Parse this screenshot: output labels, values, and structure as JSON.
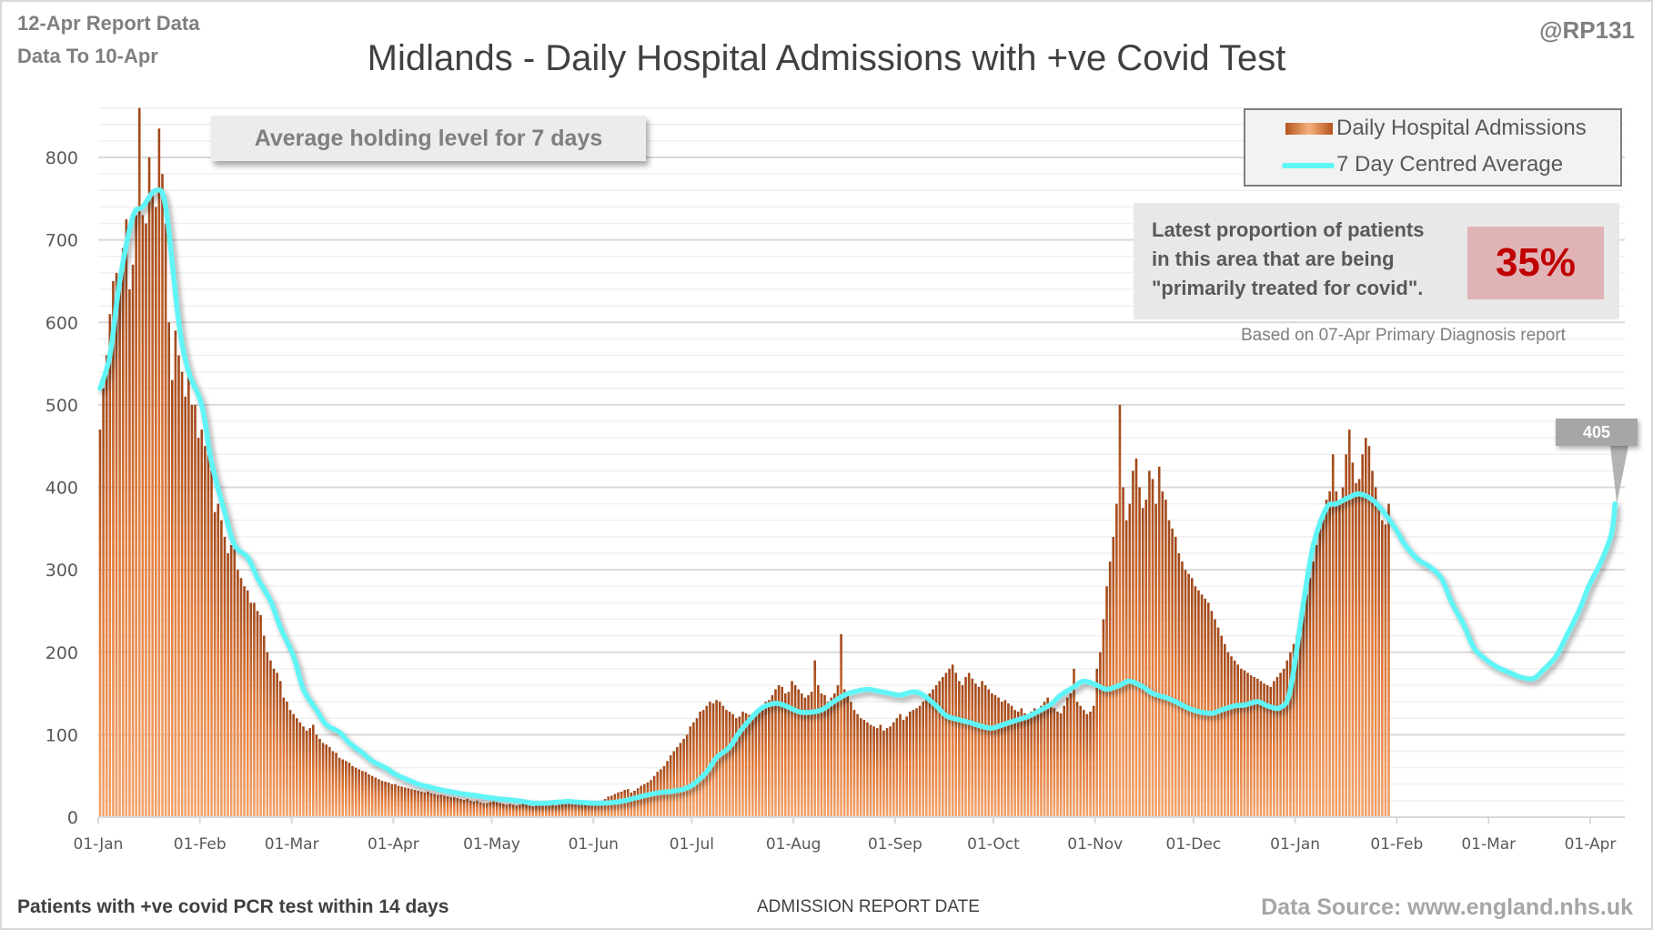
{
  "header": {
    "report_line": "12-Apr Report Data",
    "data_to_line": "Data To 10-Apr",
    "handle": "@RP131",
    "title": "Midlands - Daily Hospital Admissions with +ve Covid Test"
  },
  "annotations": {
    "holding_note": "Average holding level for 7 days",
    "proportion_text": "Latest proportion of patients in this area that are being \"primarily treated for covid\".",
    "proportion_value": "35%",
    "based_on": "Based on 07-Apr Primary Diagnosis report",
    "last_average_label": "405"
  },
  "footer": {
    "left": "Patients with +ve covid PCR test within 14 days",
    "axis_title": "ADMISSION REPORT DATE",
    "source": "Data Source: www.england.nhs.uk"
  },
  "colors": {
    "bar_dark": "#a0471a",
    "bar_light": "#f4a46c",
    "average_line": "#5ff5f7",
    "grid": "#d9d9d9",
    "highlight_pct": "#c00000"
  },
  "chart_data": {
    "type": "bar",
    "title": "Midlands - Daily Hospital Admissions with +ve Covid Test",
    "xlabel": "ADMISSION REPORT DATE",
    "ylabel": "",
    "ylim": [
      0,
      860
    ],
    "yticks": [
      0,
      100,
      200,
      300,
      400,
      500,
      600,
      700,
      800
    ],
    "start_date": "2021-01-01",
    "end_date": "2022-04-10",
    "xtick_labels": [
      "01-Jan",
      "01-Feb",
      "01-Mar",
      "01-Apr",
      "01-May",
      "01-Jun",
      "01-Jul",
      "01-Aug",
      "01-Sep",
      "01-Oct",
      "01-Nov",
      "01-Dec",
      "01-Jan",
      "01-Feb",
      "01-Mar",
      "01-Apr"
    ],
    "xtick_day_index": [
      0,
      31,
      59,
      90,
      120,
      151,
      181,
      212,
      243,
      273,
      304,
      334,
      365,
      396,
      424,
      455
    ],
    "legend": [
      "Daily Hospital Admissions",
      "7 Day Centred Average"
    ],
    "legend_position": "top-right",
    "grid": true,
    "series": [
      {
        "name": "7 Day Centred Average",
        "type": "line",
        "day_index": [
          0,
          3,
          6,
          10,
          13,
          17,
          20,
          24,
          27,
          31,
          34,
          38,
          41,
          45,
          48,
          52,
          55,
          59,
          62,
          66,
          69,
          73,
          76,
          80,
          83,
          87,
          90,
          94,
          97,
          101,
          104,
          108,
          111,
          115,
          118,
          122,
          125,
          129,
          132,
          136,
          139,
          143,
          146,
          150,
          153,
          157,
          160,
          164,
          167,
          171,
          174,
          178,
          181,
          185,
          188,
          192,
          195,
          199,
          202,
          206,
          209,
          213,
          216,
          220,
          223,
          227,
          230,
          234,
          237,
          241,
          244,
          248,
          251,
          255,
          258,
          262,
          265,
          269,
          272,
          276,
          279,
          283,
          286,
          290,
          293,
          297,
          300,
          304,
          307,
          311,
          314,
          318,
          321,
          325,
          328,
          332,
          335,
          339,
          342,
          346,
          349,
          353,
          356,
          360,
          363,
          367,
          370,
          374,
          377,
          381,
          384,
          388,
          391,
          395,
          398,
          402,
          405,
          409,
          412,
          416,
          419,
          423,
          426,
          430,
          433,
          437,
          440,
          444,
          447,
          451,
          454,
          458,
          461,
          462
        ],
        "values": [
          520,
          560,
          650,
          728,
          740,
          760,
          740,
          600,
          540,
          500,
          430,
          370,
          330,
          315,
          290,
          262,
          230,
          195,
          155,
          130,
          112,
          103,
          90,
          78,
          68,
          60,
          52,
          45,
          40,
          36,
          33,
          30,
          28,
          26,
          24,
          22,
          21,
          19,
          17,
          17,
          18,
          19,
          18,
          17,
          17,
          18,
          20,
          24,
          27,
          30,
          31,
          34,
          40,
          55,
          72,
          85,
          103,
          122,
          133,
          138,
          135,
          128,
          127,
          130,
          138,
          148,
          152,
          155,
          153,
          150,
          148,
          152,
          148,
          135,
          123,
          118,
          115,
          110,
          108,
          113,
          117,
          122,
          128,
          137,
          148,
          158,
          165,
          160,
          155,
          160,
          165,
          158,
          150,
          145,
          140,
          132,
          128,
          126,
          130,
          135,
          136,
          140,
          135,
          133,
          155,
          260,
          330,
          375,
          380,
          388,
          392,
          385,
          372,
          350,
          330,
          312,
          305,
          290,
          262,
          232,
          205,
          190,
          182,
          175,
          170,
          168,
          178,
          195,
          218,
          250,
          280,
          312,
          345,
          380,
          395,
          400,
          408,
          402,
          405,
          405
        ]
      },
      {
        "name": "Daily Hospital Admissions",
        "type": "bar",
        "values": [
          470,
          520,
          560,
          610,
          650,
          660,
          640,
          690,
          725,
          640,
          670,
          730,
          860,
          730,
          720,
          800,
          760,
          740,
          835,
          780,
          720,
          600,
          530,
          590,
          560,
          540,
          510,
          540,
          500,
          500,
          460,
          470,
          450,
          440,
          420,
          370,
          380,
          360,
          340,
          320,
          330,
          325,
          300,
          290,
          280,
          275,
          260,
          260,
          250,
          245,
          220,
          200,
          190,
          180,
          175,
          165,
          145,
          140,
          130,
          125,
          120,
          115,
          110,
          105,
          108,
          112,
          100,
          95,
          90,
          88,
          85,
          80,
          78,
          72,
          70,
          68,
          66,
          62,
          60,
          58,
          56,
          55,
          52,
          50,
          48,
          46,
          44,
          43,
          42,
          40,
          40,
          38,
          37,
          36,
          35,
          34,
          33,
          32,
          31,
          30,
          31,
          29,
          28,
          27,
          27,
          26,
          25,
          24,
          24,
          23,
          22,
          21,
          22,
          20,
          19,
          20,
          18,
          17,
          17,
          18,
          19,
          18,
          17,
          16,
          15,
          16,
          15,
          14,
          15,
          16,
          15,
          14,
          13,
          14,
          15,
          16,
          17,
          16,
          15,
          14,
          15,
          16,
          17,
          18,
          19,
          18,
          17,
          16,
          15,
          16,
          17,
          18,
          19,
          20,
          22,
          25,
          26,
          28,
          30,
          31,
          33,
          34,
          30,
          32,
          35,
          38,
          40,
          42,
          45,
          50,
          55,
          58,
          62,
          68,
          75,
          80,
          85,
          90,
          95,
          100,
          110,
          115,
          120,
          128,
          130,
          135,
          140,
          138,
          142,
          140,
          135,
          130,
          128,
          125,
          120,
          122,
          128,
          126,
          124,
          122,
          125,
          130,
          135,
          140,
          142,
          148,
          155,
          160,
          158,
          150,
          152,
          165,
          160,
          155,
          150,
          145,
          148,
          152,
          190,
          160,
          150,
          148,
          140,
          145,
          150,
          160,
          222,
          155,
          148,
          140,
          130,
          125,
          120,
          118,
          115,
          112,
          110,
          108,
          112,
          105,
          108,
          110,
          115,
          120,
          125,
          118,
          122,
          128,
          130,
          132,
          135,
          140,
          145,
          150,
          155,
          160,
          165,
          170,
          175,
          180,
          185,
          175,
          165,
          160,
          170,
          175,
          168,
          162,
          158,
          165,
          160,
          155,
          150,
          148,
          145,
          140,
          142,
          138,
          135,
          130,
          128,
          132,
          126,
          122,
          128,
          132,
          130,
          135,
          140,
          145,
          138,
          132,
          128,
          126,
          135,
          145,
          150,
          180,
          140,
          135,
          130,
          125,
          128,
          135,
          180,
          200,
          240,
          280,
          310,
          340,
          380,
          500,
          400,
          360,
          380,
          420,
          435,
          400,
          375,
          385,
          420,
          410,
          380,
          425,
          395,
          385,
          360,
          350,
          340,
          320,
          310,
          300,
          295,
          290,
          280,
          275,
          270,
          265,
          260,
          250,
          240,
          230,
          220,
          210,
          200,
          195,
          190,
          185,
          180,
          178,
          175,
          172,
          170,
          168,
          165,
          162,
          160,
          158,
          165,
          170,
          175,
          180,
          190,
          200,
          210,
          220,
          235,
          250,
          270,
          290,
          310,
          330,
          350,
          370,
          385,
          395,
          440,
          395,
          380,
          400,
          440,
          470,
          430,
          405,
          410,
          440,
          460,
          450,
          420,
          400,
          380,
          360,
          355,
          380
        ]
      }
    ]
  }
}
